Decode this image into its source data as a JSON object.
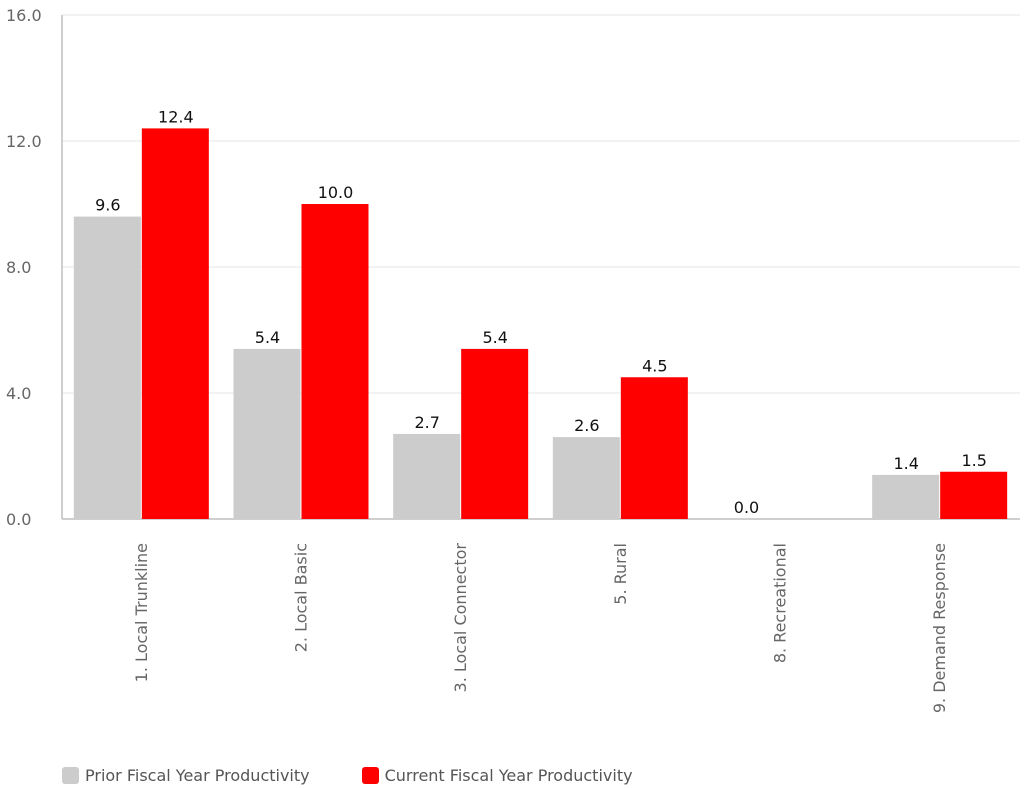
{
  "chart_data": {
    "type": "bar",
    "categories": [
      "1. Local Trunkline",
      "2. Local Basic",
      "3. Local Connector",
      "5. Rural",
      "8. Recreational",
      "9. Demand Response"
    ],
    "series": [
      {
        "name": "Prior Fiscal Year Productivity",
        "color": "#cccccc",
        "values": [
          9.6,
          5.4,
          2.7,
          2.6,
          0.0,
          1.4
        ],
        "labels": [
          "9.6",
          "5.4",
          "2.7",
          "2.6",
          "0.0",
          "1.4"
        ]
      },
      {
        "name": "Current Fiscal Year Productivity",
        "color": "#ff0000",
        "values": [
          12.4,
          10.0,
          5.4,
          4.5,
          null,
          1.5
        ],
        "labels": [
          "12.4",
          "10.0",
          "5.4",
          "4.5",
          "",
          "1.5"
        ]
      }
    ],
    "y_ticks": [
      "0.0",
      "4.0",
      "8.0",
      "12.0",
      "16.0"
    ],
    "ylim": [
      0,
      16
    ],
    "grid": true,
    "legend_position": "bottom-left"
  }
}
